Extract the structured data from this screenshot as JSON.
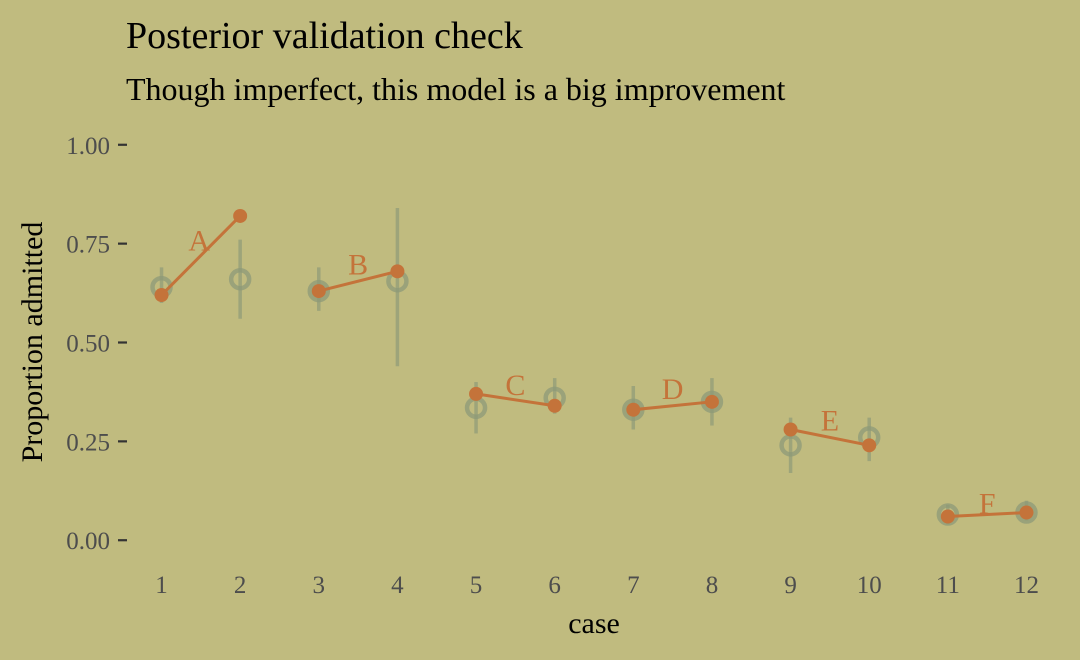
{
  "chart_data": {
    "type": "scatter",
    "title": "Posterior validation check",
    "subtitle": "Though imperfect, this model is a big improvement",
    "xlabel": "case",
    "ylabel": "Proportion admitted",
    "x_ticks": [
      "1",
      "2",
      "3",
      "4",
      "5",
      "6",
      "7",
      "8",
      "9",
      "10",
      "11",
      "12"
    ],
    "y_ticks": [
      "0.00",
      "0.25",
      "0.50",
      "0.75",
      "1.00"
    ],
    "xlim": [
      0.65,
      12.35
    ],
    "ylim": [
      -0.05,
      1.05
    ],
    "grid": false,
    "colors": {
      "observed": "#c4733a",
      "posterior": "#8e9a78",
      "background": "#c0bb7f"
    },
    "posterior": [
      {
        "case": 1,
        "mean": 0.64,
        "lo": 0.6,
        "hi": 0.69
      },
      {
        "case": 2,
        "mean": 0.66,
        "lo": 0.56,
        "hi": 0.76
      },
      {
        "case": 3,
        "mean": 0.63,
        "lo": 0.58,
        "hi": 0.69
      },
      {
        "case": 4,
        "mean": 0.655,
        "lo": 0.44,
        "hi": 0.84
      },
      {
        "case": 5,
        "mean": 0.335,
        "lo": 0.27,
        "hi": 0.4
      },
      {
        "case": 6,
        "mean": 0.36,
        "lo": 0.32,
        "hi": 0.41
      },
      {
        "case": 7,
        "mean": 0.33,
        "lo": 0.28,
        "hi": 0.39
      },
      {
        "case": 8,
        "mean": 0.35,
        "lo": 0.29,
        "hi": 0.41
      },
      {
        "case": 9,
        "mean": 0.24,
        "lo": 0.17,
        "hi": 0.31
      },
      {
        "case": 10,
        "mean": 0.26,
        "lo": 0.2,
        "hi": 0.31
      },
      {
        "case": 11,
        "mean": 0.065,
        "lo": 0.04,
        "hi": 0.09
      },
      {
        "case": 12,
        "mean": 0.07,
        "lo": 0.05,
        "hi": 0.1
      }
    ],
    "observed": [
      {
        "case": 1,
        "value": 0.62
      },
      {
        "case": 2,
        "value": 0.82
      },
      {
        "case": 3,
        "value": 0.63
      },
      {
        "case": 4,
        "value": 0.68
      },
      {
        "case": 5,
        "value": 0.37
      },
      {
        "case": 6,
        "value": 0.34
      },
      {
        "case": 7,
        "value": 0.33
      },
      {
        "case": 8,
        "value": 0.35
      },
      {
        "case": 9,
        "value": 0.28
      },
      {
        "case": 10,
        "value": 0.24
      },
      {
        "case": 11,
        "value": 0.06
      },
      {
        "case": 12,
        "value": 0.07
      }
    ],
    "groups": [
      {
        "label": "A",
        "cases": [
          1,
          2
        ],
        "label_x": 1.48,
        "label_y": 0.76
      },
      {
        "label": "B",
        "cases": [
          3,
          4
        ],
        "label_x": 3.5,
        "label_y": 0.7
      },
      {
        "label": "C",
        "cases": [
          5,
          6
        ],
        "label_x": 5.5,
        "label_y": 0.395
      },
      {
        "label": "D",
        "cases": [
          7,
          8
        ],
        "label_x": 7.5,
        "label_y": 0.385
      },
      {
        "label": "E",
        "cases": [
          9,
          10
        ],
        "label_x": 9.5,
        "label_y": 0.305
      },
      {
        "label": "F",
        "cases": [
          11,
          12
        ],
        "label_x": 11.5,
        "label_y": 0.095
      }
    ]
  }
}
